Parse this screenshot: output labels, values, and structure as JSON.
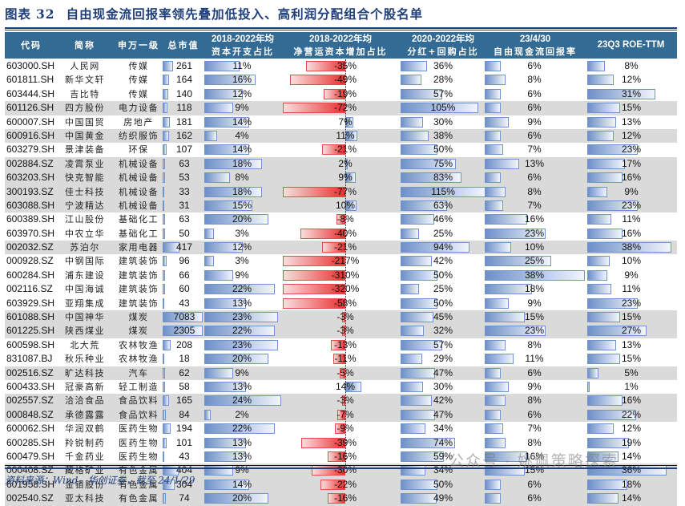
{
  "title": {
    "label": "图表",
    "number": "32",
    "text": "自由现金流回报率领先叠加低投入、高利润分配组合个股名单"
  },
  "headers": {
    "code": "代码",
    "name": "简称",
    "industry": "申万一级",
    "mktcap": "总市值",
    "capex": [
      "2018-2022年均",
      "资本开支占比"
    ],
    "nwc": [
      "2018-2022年均",
      "净营运资本增加占比"
    ],
    "payout": [
      "2020-2022年均",
      "分红+回购占比"
    ],
    "fcf": [
      "23/4/30",
      "自由现金流回报率"
    ],
    "roe": [
      "23Q3 ROE-TTM"
    ]
  },
  "colors": {
    "header_bg": "#336b95",
    "title": "#1f3f7a",
    "bar_blue": "#6e90c8",
    "bar_red": "#e8302f",
    "row_shade": "#dadada"
  },
  "chart_data": {
    "type": "table",
    "title": "自由现金流回报率领先叠加低投入、高利润分配组合个股名单",
    "columns": [
      "代码",
      "简称",
      "申万一级",
      "总市值",
      "2018-2022年均资本开支占比",
      "2018-2022年均净营运资本增加占比",
      "2020-2022年均分红+回购占比",
      "23/4/30自由现金流回报率",
      "23Q3 ROE-TTM"
    ],
    "rows": [
      {
        "code": "603000.SH",
        "name": "人民网",
        "industry": "传媒",
        "mktcap": 261,
        "capex": "11%",
        "nwc": "-35%",
        "payout": "36%",
        "fcf": "6%",
        "roe": "8%",
        "shade": false
      },
      {
        "code": "601811.SH",
        "name": "新华文轩",
        "industry": "传媒",
        "mktcap": 164,
        "capex": "16%",
        "nwc": "-49%",
        "payout": "28%",
        "fcf": "8%",
        "roe": "12%",
        "shade": false
      },
      {
        "code": "603444.SH",
        "name": "吉比特",
        "industry": "传媒",
        "mktcap": 140,
        "capex": "12%",
        "nwc": "-19%",
        "payout": "57%",
        "fcf": "6%",
        "roe": "31%",
        "shade": false
      },
      {
        "code": "601126.SH",
        "name": "四方股份",
        "industry": "电力设备",
        "mktcap": 118,
        "capex": "9%",
        "nwc": "-72%",
        "payout": "105%",
        "fcf": "6%",
        "roe": "15%",
        "shade": true
      },
      {
        "code": "600007.SH",
        "name": "中国国贸",
        "industry": "房地产",
        "mktcap": 181,
        "capex": "14%",
        "nwc": "7%",
        "payout": "30%",
        "fcf": "9%",
        "roe": "13%",
        "shade": false
      },
      {
        "code": "600916.SH",
        "name": "中国黄金",
        "industry": "纺织服饰",
        "mktcap": 162,
        "capex": "4%",
        "nwc": "11%",
        "payout": "38%",
        "fcf": "6%",
        "roe": "12%",
        "shade": true
      },
      {
        "code": "603279.SH",
        "name": "景津装备",
        "industry": "环保",
        "mktcap": 107,
        "capex": "14%",
        "nwc": "-21%",
        "payout": "50%",
        "fcf": "7%",
        "roe": "23%",
        "shade": false
      },
      {
        "code": "002884.SZ",
        "name": "凌霄泵业",
        "industry": "机械设备",
        "mktcap": 63,
        "capex": "18%",
        "nwc": "2%",
        "payout": "75%",
        "fcf": "13%",
        "roe": "17%",
        "shade": true
      },
      {
        "code": "603203.SH",
        "name": "快克智能",
        "industry": "机械设备",
        "mktcap": 53,
        "capex": "8%",
        "nwc": "9%",
        "payout": "83%",
        "fcf": "6%",
        "roe": "16%",
        "shade": true
      },
      {
        "code": "300193.SZ",
        "name": "佳士科技",
        "industry": "机械设备",
        "mktcap": 33,
        "capex": "18%",
        "nwc": "-77%",
        "payout": "115%",
        "fcf": "8%",
        "roe": "9%",
        "shade": true
      },
      {
        "code": "603088.SH",
        "name": "宁波精达",
        "industry": "机械设备",
        "mktcap": 31,
        "capex": "15%",
        "nwc": "10%",
        "payout": "63%",
        "fcf": "7%",
        "roe": "23%",
        "shade": true
      },
      {
        "code": "600389.SH",
        "name": "江山股份",
        "industry": "基础化工",
        "mktcap": 63,
        "capex": "20%",
        "nwc": "-8%",
        "payout": "46%",
        "fcf": "16%",
        "roe": "11%",
        "shade": false
      },
      {
        "code": "603970.SH",
        "name": "中农立华",
        "industry": "基础化工",
        "mktcap": 50,
        "capex": "3%",
        "nwc": "-40%",
        "payout": "25%",
        "fcf": "23%",
        "roe": "16%",
        "shade": false
      },
      {
        "code": "002032.SZ",
        "name": "苏泊尔",
        "industry": "家用电器",
        "mktcap": 417,
        "capex": "12%",
        "nwc": "-21%",
        "payout": "94%",
        "fcf": "10%",
        "roe": "38%",
        "shade": true
      },
      {
        "code": "000928.SZ",
        "name": "中钢国际",
        "industry": "建筑装饰",
        "mktcap": 96,
        "capex": "3%",
        "nwc": "-217%",
        "payout": "42%",
        "fcf": "25%",
        "roe": "10%",
        "shade": false
      },
      {
        "code": "600284.SH",
        "name": "浦东建设",
        "industry": "建筑装饰",
        "mktcap": 66,
        "capex": "9%",
        "nwc": "-310%",
        "payout": "50%",
        "fcf": "38%",
        "roe": "9%",
        "shade": false
      },
      {
        "code": "002116.SZ",
        "name": "中国海诚",
        "industry": "建筑装饰",
        "mktcap": 60,
        "capex": "22%",
        "nwc": "-320%",
        "payout": "25%",
        "fcf": "18%",
        "roe": "11%",
        "shade": false
      },
      {
        "code": "603929.SH",
        "name": "亚翔集成",
        "industry": "建筑装饰",
        "mktcap": 43,
        "capex": "13%",
        "nwc": "-58%",
        "payout": "50%",
        "fcf": "9%",
        "roe": "23%",
        "shade": false
      },
      {
        "code": "601088.SH",
        "name": "中国神华",
        "industry": "煤炭",
        "mktcap": 7083,
        "capex": "23%",
        "nwc": "-3%",
        "payout": "45%",
        "fcf": "15%",
        "roe": "15%",
        "shade": true
      },
      {
        "code": "601225.SH",
        "name": "陕西煤业",
        "industry": "煤炭",
        "mktcap": 2305,
        "capex": "22%",
        "nwc": "-3%",
        "payout": "32%",
        "fcf": "23%",
        "roe": "27%",
        "shade": true
      },
      {
        "code": "600598.SH",
        "name": "北大荒",
        "industry": "农林牧渔",
        "mktcap": 208,
        "capex": "23%",
        "nwc": "-13%",
        "payout": "57%",
        "fcf": "8%",
        "roe": "13%",
        "shade": false
      },
      {
        "code": "831087.BJ",
        "name": "秋乐种业",
        "industry": "农林牧渔",
        "mktcap": 18,
        "capex": "20%",
        "nwc": "-11%",
        "payout": "29%",
        "fcf": "11%",
        "roe": "15%",
        "shade": false
      },
      {
        "code": "002516.SZ",
        "name": "旷达科技",
        "industry": "汽车",
        "mktcap": 62,
        "capex": "9%",
        "nwc": "-5%",
        "payout": "47%",
        "fcf": "6%",
        "roe": "5%",
        "shade": true
      },
      {
        "code": "600433.SH",
        "name": "冠豪高新",
        "industry": "轻工制造",
        "mktcap": 58,
        "capex": "13%",
        "nwc": "14%",
        "payout": "30%",
        "fcf": "9%",
        "roe": "1%",
        "shade": false
      },
      {
        "code": "002557.SZ",
        "name": "洽洽食品",
        "industry": "食品饮料",
        "mktcap": 165,
        "capex": "24%",
        "nwc": "-3%",
        "payout": "42%",
        "fcf": "8%",
        "roe": "16%",
        "shade": true
      },
      {
        "code": "000848.SZ",
        "name": "承德露露",
        "industry": "食品饮料",
        "mktcap": 84,
        "capex": "2%",
        "nwc": "-7%",
        "payout": "47%",
        "fcf": "6%",
        "roe": "22%",
        "shade": true
      },
      {
        "code": "600062.SH",
        "name": "华润双鹤",
        "industry": "医药生物",
        "mktcap": 194,
        "capex": "22%",
        "nwc": "-9%",
        "payout": "34%",
        "fcf": "7%",
        "roe": "12%",
        "shade": false
      },
      {
        "code": "600285.SH",
        "name": "羚锐制药",
        "industry": "医药生物",
        "mktcap": 101,
        "capex": "13%",
        "nwc": "-39%",
        "payout": "74%",
        "fcf": "8%",
        "roe": "19%",
        "shade": false
      },
      {
        "code": "600479.SH",
        "name": "千金药业",
        "industry": "医药生物",
        "mktcap": 43,
        "capex": "13%",
        "nwc": "-16%",
        "payout": "59%",
        "fcf": "16%",
        "roe": "14%",
        "shade": false
      },
      {
        "code": "000408.SZ",
        "name": "藏格矿业",
        "industry": "有色金属",
        "mktcap": 404,
        "capex": "9%",
        "nwc": "-30%",
        "payout": "34%",
        "fcf": "15%",
        "roe": "36%",
        "shade": true
      },
      {
        "code": "601958.SH",
        "name": "金钼股份",
        "industry": "有色金属",
        "mktcap": 304,
        "capex": "14%",
        "nwc": "-22%",
        "payout": "50%",
        "fcf": "6%",
        "roe": "18%",
        "shade": true
      },
      {
        "code": "002540.SZ",
        "name": "亚太科技",
        "industry": "有色金属",
        "mktcap": 74,
        "capex": "20%",
        "nwc": "-16%",
        "payout": "49%",
        "fcf": "6%",
        "roe": "14%",
        "shade": true
      }
    ]
  },
  "footer": {
    "source": "资料来源：Wind，华创证券，截至 24/1/29"
  },
  "watermark": "公众号 · 姚佩策略探索"
}
